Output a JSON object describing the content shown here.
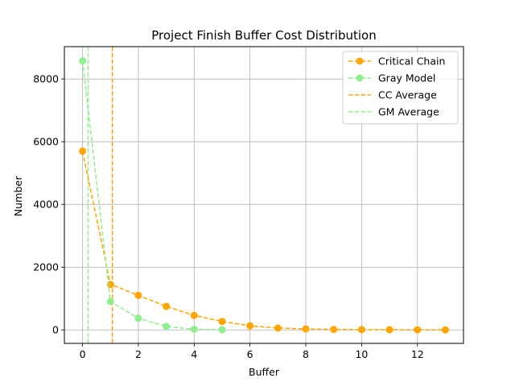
{
  "chart_data": {
    "type": "line",
    "title": "Project Finish Buffer Cost Distribution",
    "xlabel": "Buffer",
    "ylabel": "Number",
    "xlim": [
      -0.65,
      13.65
    ],
    "ylim": [
      -430,
      9030
    ],
    "xticks": [
      0,
      2,
      4,
      6,
      8,
      10,
      12
    ],
    "yticks": [
      0,
      2000,
      4000,
      6000,
      8000
    ],
    "grid": true,
    "legend_position": "top-right",
    "series": [
      {
        "name": "Critical Chain",
        "color": "#ffa500",
        "style": "dashed-marker",
        "x": [
          0,
          1,
          2,
          3,
          4,
          5,
          6,
          7,
          8,
          9,
          10,
          11,
          12,
          13
        ],
        "values": [
          5700,
          1450,
          1100,
          750,
          460,
          270,
          130,
          60,
          30,
          15,
          8,
          5,
          3,
          1
        ]
      },
      {
        "name": "Gray Model",
        "color": "#90ee90",
        "style": "dashed-marker",
        "x": [
          0,
          1,
          2,
          3,
          4,
          5
        ],
        "values": [
          8580,
          900,
          370,
          110,
          20,
          5
        ]
      }
    ],
    "vlines": [
      {
        "name": "CC Average",
        "x": 1.07,
        "color": "#ffa500"
      },
      {
        "name": "GM Average",
        "x": 0.2,
        "color": "#90ee90"
      }
    ]
  }
}
